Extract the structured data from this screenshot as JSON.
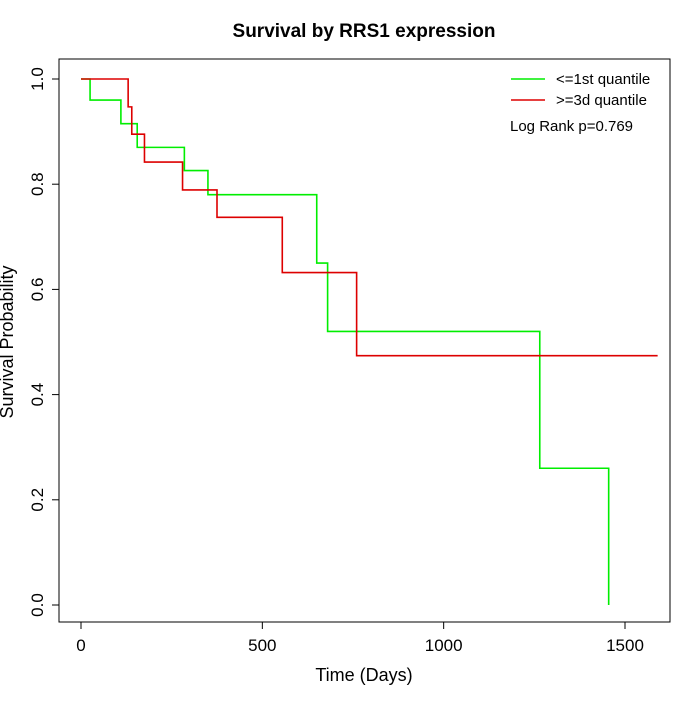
{
  "chart_data": {
    "type": "line",
    "title": "Survival by RRS1 expression",
    "xlabel": "Time (Days)",
    "ylabel": "Survival Probability",
    "xlim": [
      0,
      1650
    ],
    "ylim": [
      0,
      1.0
    ],
    "x_ticks": [
      0,
      500,
      1000,
      1500
    ],
    "y_ticks": [
      0.0,
      0.2,
      0.4,
      0.6,
      0.8,
      1.0
    ],
    "x_tick_labels": [
      "0",
      "500",
      "1000",
      "1500"
    ],
    "y_tick_labels": [
      "0.0",
      "0.2",
      "0.4",
      "0.6",
      "0.8",
      "1.0"
    ],
    "grid": false,
    "legend_position": "top-right",
    "annotation": "Log Rank p=0.769",
    "series": [
      {
        "name": "<=1st quantile",
        "color": "#00ee00",
        "step": true,
        "x": [
          0,
          25,
          110,
          155,
          285,
          350,
          650,
          680,
          1265,
          1455
        ],
        "y": [
          1.0,
          0.96,
          0.915,
          0.87,
          0.826,
          0.78,
          0.65,
          0.52,
          0.26,
          0.0
        ],
        "end_x": 1455
      },
      {
        "name": ">=3d quantile",
        "color": "#dd0000",
        "step": true,
        "x": [
          0,
          130,
          140,
          175,
          280,
          375,
          555,
          760
        ],
        "y": [
          1.0,
          0.947,
          0.895,
          0.842,
          0.789,
          0.737,
          0.632,
          0.474
        ],
        "end_x": 1590
      }
    ]
  }
}
